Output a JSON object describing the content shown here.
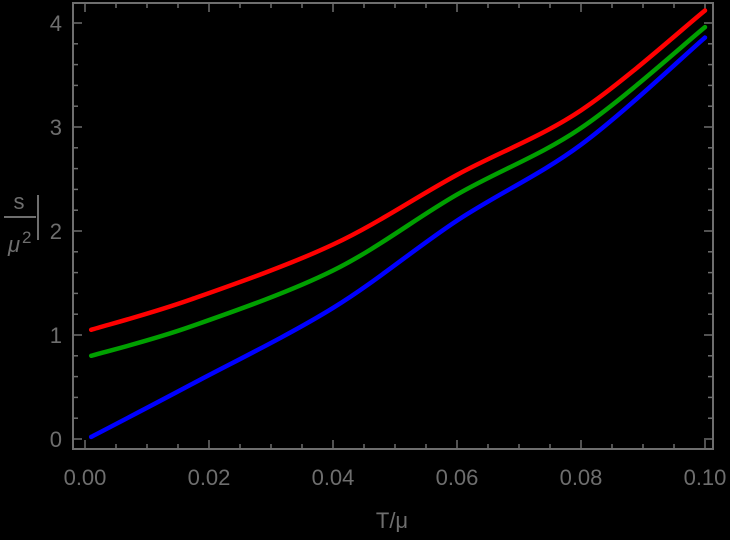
{
  "chart_data": {
    "type": "line",
    "title": "",
    "xlabel": "T/μ",
    "ylabel": "s/μ²",
    "ylabel_numerator": "s",
    "ylabel_denominator": "μ",
    "ylabel_denominator_exp": "2",
    "xlim": [
      0.0,
      0.1
    ],
    "ylim": [
      0,
      4.2
    ],
    "x_ticks": [
      0.0,
      0.02,
      0.04,
      0.06,
      0.08,
      0.1
    ],
    "x_tick_labels": [
      "0.00",
      "0.02",
      "0.04",
      "0.06",
      "0.08",
      "0.10"
    ],
    "y_ticks": [
      0,
      1,
      2,
      3,
      4
    ],
    "y_tick_labels": [
      "0",
      "1",
      "2",
      "3",
      "4"
    ],
    "grid": false,
    "legend": null,
    "x": [
      0.001,
      0.017,
      0.04,
      0.06,
      0.08,
      0.1
    ],
    "series": [
      {
        "name": "red",
        "color": "#ff0000",
        "values": [
          1.05,
          1.34,
          1.87,
          2.54,
          3.16,
          4.12
        ]
      },
      {
        "name": "green",
        "color": "#00a000",
        "values": [
          0.8,
          1.08,
          1.62,
          2.35,
          2.99,
          3.96
        ]
      },
      {
        "name": "blue",
        "color": "#0000ff",
        "values": [
          0.02,
          0.52,
          1.26,
          2.1,
          2.83,
          3.86
        ]
      }
    ]
  },
  "style": {
    "background": "#000000",
    "axis_color": "#6e6e6e"
  }
}
